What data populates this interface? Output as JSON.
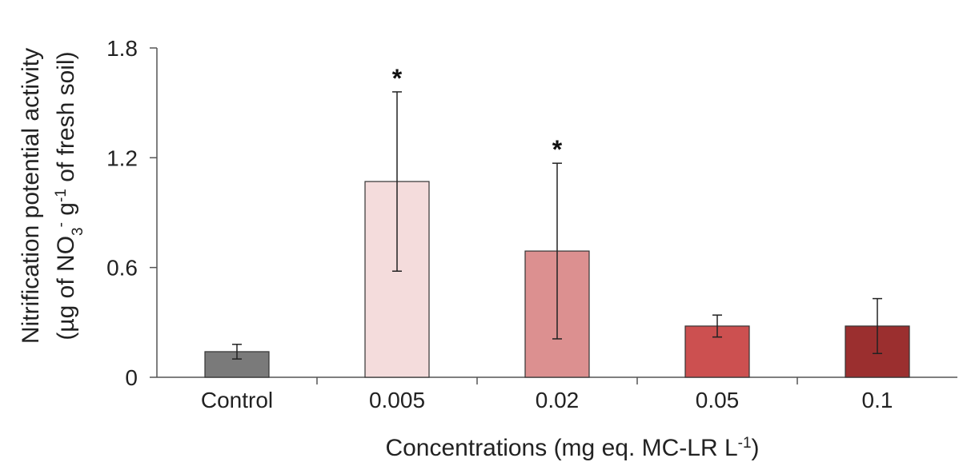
{
  "chart_data": {
    "type": "bar",
    "categories": [
      "Control",
      "0.005",
      "0.02",
      "0.05",
      "0.1"
    ],
    "values": [
      0.14,
      1.07,
      0.69,
      0.28,
      0.28
    ],
    "errors": [
      0.04,
      0.49,
      0.48,
      0.06,
      0.15
    ],
    "significance": [
      "",
      "*",
      "*",
      "",
      ""
    ],
    "colors": [
      "#7a7a7a",
      "#f4dcdc",
      "#dc9090",
      "#cc5050",
      "#9b2f2f"
    ],
    "yticks": [
      0,
      0.6,
      1.2,
      1.8
    ],
    "ytick_labels": [
      "0",
      "0.6",
      "1.2",
      "1.8"
    ],
    "ylim": [
      0,
      1.8
    ],
    "xlabel": {
      "main": "Concentrations (mg eq. MC-LR L",
      "sup": "-1",
      "close": ")"
    },
    "ylabel": {
      "line1": "Nitrification potential activity",
      "line2_a": "(µg of NO",
      "line2_sub": "3",
      "line2_sup": "-",
      "line2_b": " g",
      "line2_sup2": "-1",
      "line2_c": " of fresh soil)"
    },
    "grid": false,
    "legend": "none"
  }
}
